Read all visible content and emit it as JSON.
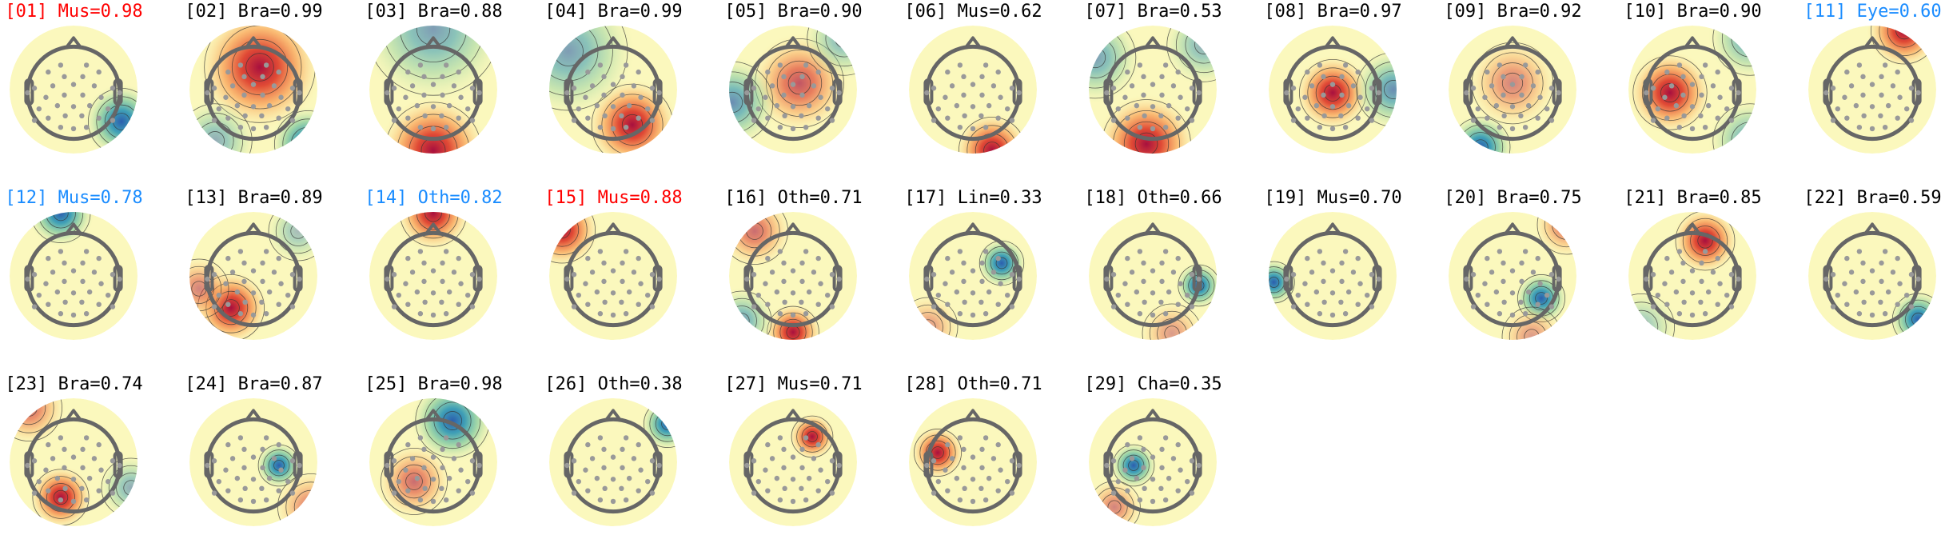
{
  "chart_data": {
    "type": "heatmap",
    "subtype": "topomap-grid",
    "colormap": "spectral (red positive, blue negative)",
    "label_colors": {
      "red": "#ff0000",
      "blue": "#1a8cff",
      "black": "#000000"
    },
    "components": [
      {
        "title": "[01] Mus=0.98",
        "color": "#ff0000"
      },
      {
        "title": "[02] Bra=0.99",
        "color": "#000000"
      },
      {
        "title": "[03] Bra=0.88",
        "color": "#000000"
      },
      {
        "title": "[04] Bra=0.99",
        "color": "#000000"
      },
      {
        "title": "[05] Bra=0.90",
        "color": "#000000"
      },
      {
        "title": "[06] Mus=0.62",
        "color": "#000000"
      },
      {
        "title": "[07] Bra=0.53",
        "color": "#000000"
      },
      {
        "title": "[08] Bra=0.97",
        "color": "#000000"
      },
      {
        "title": "[09] Bra=0.92",
        "color": "#000000"
      },
      {
        "title": "[10] Bra=0.90",
        "color": "#000000"
      },
      {
        "title": "[11] Eye=0.60",
        "color": "#1a8cff"
      },
      {
        "title": "[12] Mus=0.78",
        "color": "#1a8cff"
      },
      {
        "title": "[13] Bra=0.89",
        "color": "#000000"
      },
      {
        "title": "[14] Oth=0.82",
        "color": "#1a8cff"
      },
      {
        "title": "[15] Mus=0.88",
        "color": "#ff0000"
      },
      {
        "title": "[16] Oth=0.71",
        "color": "#000000"
      },
      {
        "title": "[17] Lin=0.33",
        "color": "#000000"
      },
      {
        "title": "[18] Oth=0.66",
        "color": "#000000"
      },
      {
        "title": "[19] Mus=0.70",
        "color": "#000000"
      },
      {
        "title": "[20] Bra=0.75",
        "color": "#000000"
      },
      {
        "title": "[21] Bra=0.85",
        "color": "#000000"
      },
      {
        "title": "[22] Bra=0.59",
        "color": "#000000"
      },
      {
        "title": "[23] Bra=0.74",
        "color": "#000000"
      },
      {
        "title": "[24] Bra=0.87",
        "color": "#000000"
      },
      {
        "title": "[25] Bra=0.98",
        "color": "#000000"
      },
      {
        "title": "[26] Oth=0.38",
        "color": "#000000"
      },
      {
        "title": "[27] Mus=0.71",
        "color": "#000000"
      },
      {
        "title": "[28] Oth=0.71",
        "color": "#000000"
      },
      {
        "title": "[29] Cha=0.35",
        "color": "#000000"
      }
    ]
  }
}
